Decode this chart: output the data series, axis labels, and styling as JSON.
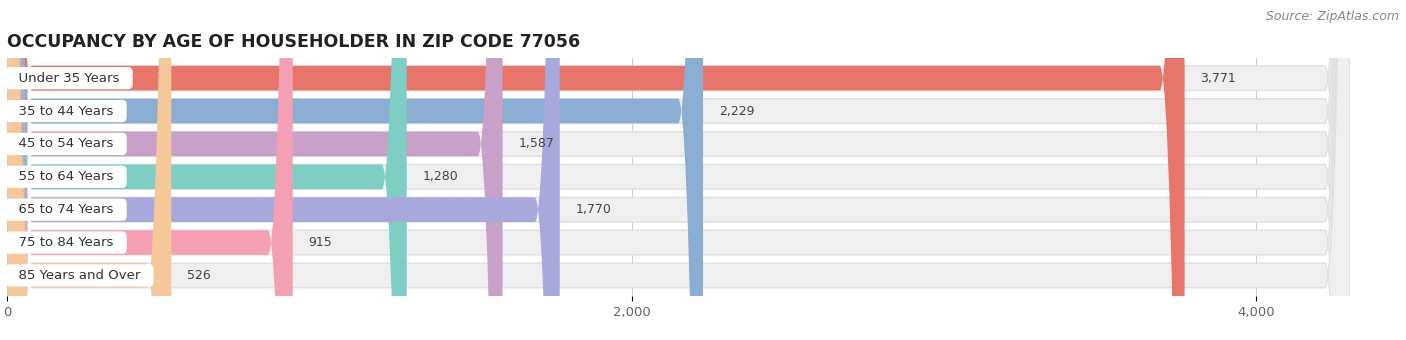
{
  "title": "OCCUPANCY BY AGE OF HOUSEHOLDER IN ZIP CODE 77056",
  "source": "Source: ZipAtlas.com",
  "categories": [
    "Under 35 Years",
    "35 to 44 Years",
    "45 to 54 Years",
    "55 to 64 Years",
    "65 to 74 Years",
    "75 to 84 Years",
    "85 Years and Over"
  ],
  "values": [
    3771,
    2229,
    1587,
    1280,
    1770,
    915,
    526
  ],
  "bar_colors": [
    "#E8756A",
    "#8AADD4",
    "#C8A0C8",
    "#7ECEC4",
    "#A8A8DC",
    "#F4A0B4",
    "#F4C898"
  ],
  "bar_bg_color": "#EFEFEF",
  "bar_border_color": "#E0E0E0",
  "xlim": [
    0,
    4300
  ],
  "xticks": [
    0,
    2000,
    4000
  ],
  "title_fontsize": 12.5,
  "label_fontsize": 9.5,
  "value_fontsize": 9,
  "source_fontsize": 9,
  "background_color": "#FFFFFF"
}
